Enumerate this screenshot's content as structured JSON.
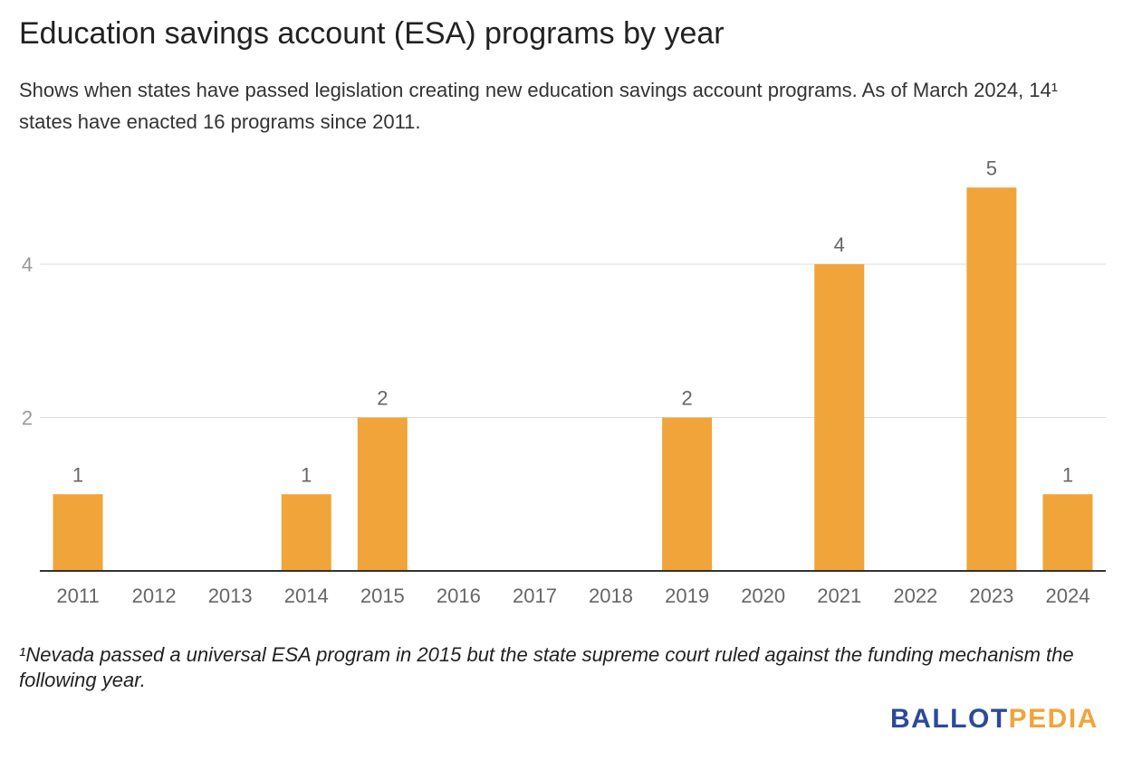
{
  "title": "Education savings account (ESA) programs by year",
  "subtitle": "Shows when states have passed legislation creating new education savings account programs. As of March 2024, 14¹ states have enacted 16 programs since 2011.",
  "footnote": "¹Nevada passed a universal ESA program in 2015 but the state supreme court ruled against the funding mechanism the following year.",
  "logo": {
    "part1": "BALLOT",
    "part2": "PEDIA",
    "color1": "#2b4a9b",
    "color2": "#f0a43a"
  },
  "chart_data": {
    "type": "bar",
    "categories": [
      "2011",
      "2012",
      "2013",
      "2014",
      "2015",
      "2016",
      "2017",
      "2018",
      "2019",
      "2020",
      "2021",
      "2022",
      "2023",
      "2024"
    ],
    "values": [
      1,
      0,
      0,
      1,
      2,
      0,
      0,
      0,
      2,
      0,
      4,
      0,
      5,
      1
    ],
    "ylim": [
      0,
      5.5
    ],
    "yticks": [
      2,
      4
    ],
    "grid": true,
    "bar_color": "#f0a43a",
    "data_labels": true
  }
}
